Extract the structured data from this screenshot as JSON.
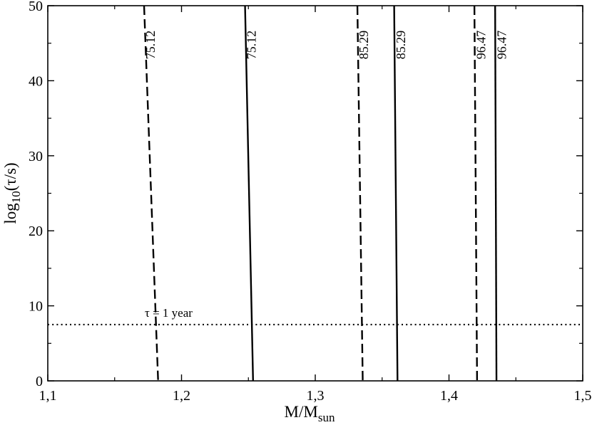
{
  "chart_data": {
    "type": "line",
    "title": "",
    "xlabel": {
      "main": "M/M",
      "sub": "sun"
    },
    "ylabel": {
      "pre": "log",
      "sub": "10",
      "post": "(τ/s)"
    },
    "xlim": [
      1.1,
      1.5
    ],
    "ylim": [
      0,
      50
    ],
    "x_ticks": [
      "1,1",
      "1,2",
      "1,3",
      "1,4",
      "1,5"
    ],
    "y_ticks": [
      "0",
      "10",
      "20",
      "30",
      "40",
      "50"
    ],
    "grid": false,
    "series": [
      {
        "label": "75.12",
        "style": "dashed",
        "points": [
          [
            1.172,
            50
          ],
          [
            1.1825,
            0
          ]
        ]
      },
      {
        "label": "75.12",
        "style": "solid",
        "points": [
          [
            1.2475,
            50
          ],
          [
            1.2535,
            0
          ]
        ]
      },
      {
        "label": "85.29",
        "style": "dashed",
        "points": [
          [
            1.3315,
            50
          ],
          [
            1.3355,
            0
          ]
        ]
      },
      {
        "label": "85.29",
        "style": "solid",
        "points": [
          [
            1.359,
            50
          ],
          [
            1.3615,
            0
          ]
        ]
      },
      {
        "label": "96.47",
        "style": "dashed",
        "points": [
          [
            1.419,
            50
          ],
          [
            1.421,
            0
          ]
        ]
      },
      {
        "label": "96.47",
        "style": "solid",
        "points": [
          [
            1.4345,
            50
          ],
          [
            1.4355,
            0
          ]
        ]
      }
    ],
    "reference_line": {
      "y": 7.5,
      "style": "dotted",
      "label": "τ = 1 year",
      "label_at": [
        1.172,
        9.1
      ]
    }
  }
}
